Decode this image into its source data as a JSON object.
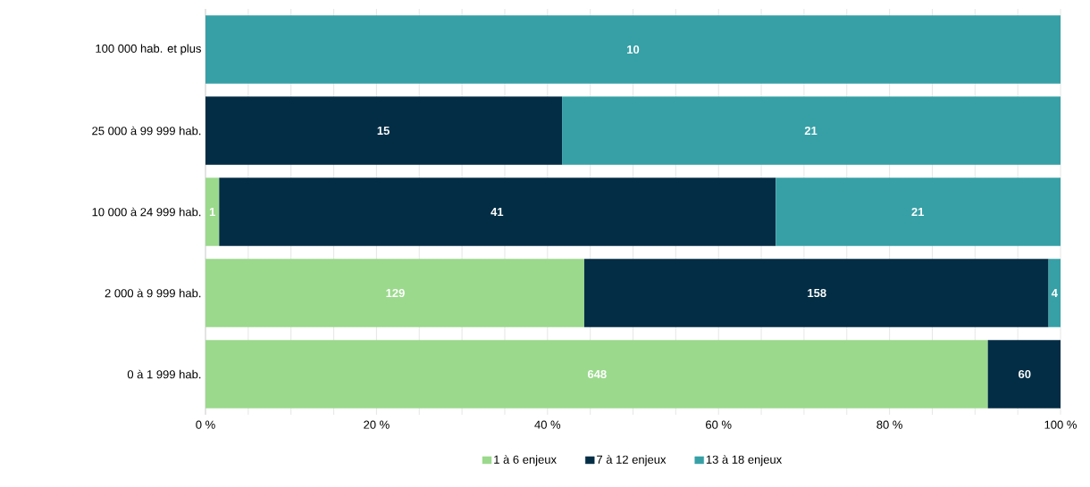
{
  "chart_data": {
    "type": "bar",
    "orientation": "horizontal",
    "stacked": true,
    "categories": [
      "100 000 hab. et plus",
      "25 000 à 99 999 hab.",
      "10 000 à 24 999 hab.",
      "2 000 à 9 999 hab.",
      "0 à 1 999 hab."
    ],
    "series": [
      {
        "name": "1 à 6 enjeux",
        "color": "#9bd98c",
        "values": [
          null,
          null,
          1.6,
          44.3,
          91.5
        ]
      },
      {
        "name": "7 à 12 enjeux",
        "color": "#032d45",
        "values": [
          null,
          41.7,
          65.1,
          54.3,
          8.5
        ]
      },
      {
        "name": "13 à 18 enjeux",
        "color": "#36a0a6",
        "values": [
          100,
          58.3,
          33.3,
          1.4,
          null
        ]
      }
    ],
    "annotations": [
      {
        "text": "10",
        "x": 50,
        "y": "100 000 hab. et plus"
      },
      {
        "text": "15",
        "x": 20.8,
        "y": "25 000 à 99 999 hab."
      },
      {
        "text": "21",
        "x": 70.8,
        "y": "25 000 à 99 999 hab."
      },
      {
        "text": "1",
        "x": 0.8,
        "y": "10 000 à 24 999 hab."
      },
      {
        "text": "41",
        "x": 34.1,
        "y": "10 000 à 24 999 hab."
      },
      {
        "text": "21",
        "x": 83.3,
        "y": "10 000 à 24 999 hab."
      },
      {
        "text": "129",
        "x": 22.2,
        "y": "2 000 à 9 999 hab."
      },
      {
        "text": "158",
        "x": 71.5,
        "y": "2 000 à 9 999 hab."
      },
      {
        "text": "4",
        "x": 99.3,
        "y": "2 000 à 9 999 hab."
      },
      {
        "text": "648",
        "x": 45.8,
        "y": "0 à 1 999 hab."
      },
      {
        "text": "60",
        "x": 95.8,
        "y": "0 à 1 999 hab."
      }
    ],
    "xlim": [
      0,
      100
    ],
    "xticks": [
      {
        "value": 0,
        "label": "0 %"
      },
      {
        "value": 5,
        "label": null
      },
      {
        "value": 10,
        "label": null
      },
      {
        "value": 15,
        "label": null
      },
      {
        "value": 20,
        "label": "20 %"
      },
      {
        "value": 25,
        "label": null
      },
      {
        "value": 30,
        "label": null
      },
      {
        "value": 35,
        "label": null
      },
      {
        "value": 40,
        "label": "40 %"
      },
      {
        "value": 45,
        "label": null
      },
      {
        "value": 50,
        "label": null
      },
      {
        "value": 55,
        "label": null
      },
      {
        "value": 60,
        "label": "60 %"
      },
      {
        "value": 65,
        "label": null
      },
      {
        "value": 70,
        "label": null
      },
      {
        "value": 75,
        "label": null
      },
      {
        "value": 80,
        "label": "80 %"
      },
      {
        "value": 85,
        "label": null
      },
      {
        "value": 90,
        "label": null
      },
      {
        "value": 95,
        "label": null
      },
      {
        "value": 100,
        "label": "100 %"
      }
    ],
    "grid": "x",
    "legend": "bottom"
  }
}
